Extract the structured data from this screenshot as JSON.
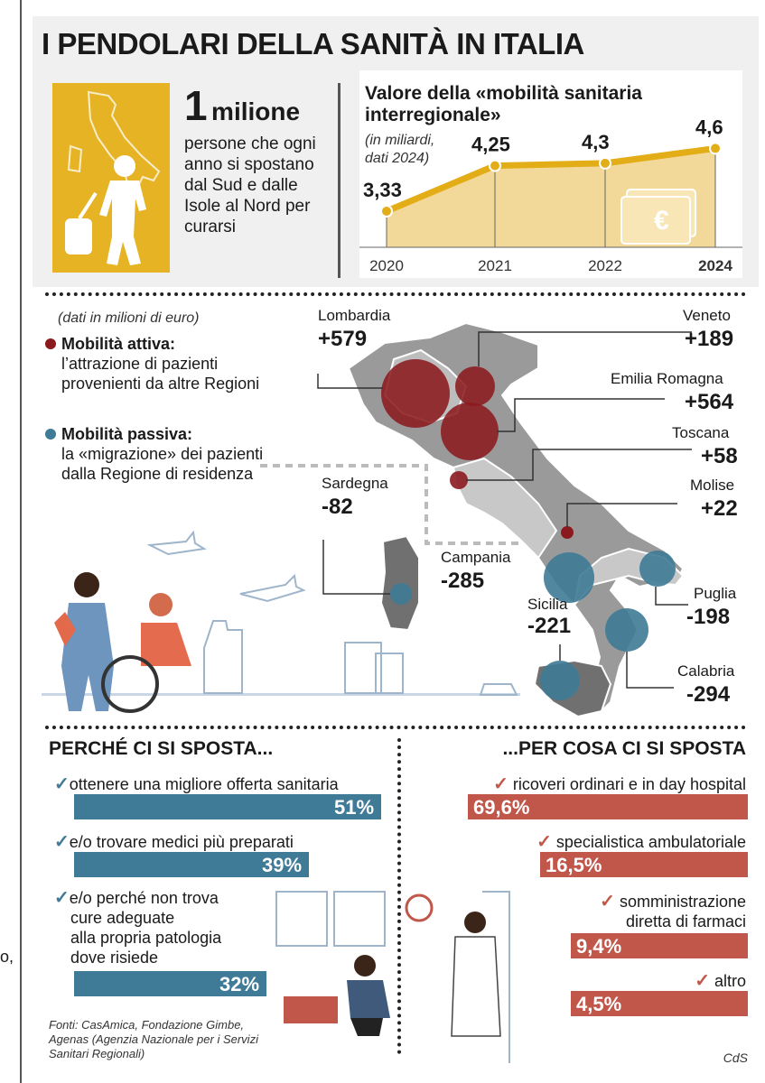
{
  "title": "I PENDOLARI DELLA SANITÀ IN ITALIA",
  "hero": {
    "number": "1",
    "unit": "milione",
    "text": "persone che ogni anno si spostano dal Sud e dalle Isole al Nord per curarsi"
  },
  "chart_data": {
    "type": "area",
    "title": "Valore della «mobilità sanitaria interregionale»",
    "subtitle_line1": "(in miliardi,",
    "subtitle_line2": "dati 2024)",
    "x": [
      "2020",
      "2021",
      "2022",
      "2024"
    ],
    "values": [
      3.33,
      4.25,
      4.3,
      4.6
    ],
    "labels": [
      "3,33",
      "4,25",
      "4,3",
      "4,6"
    ],
    "ylim": [
      2.6,
      4.9
    ],
    "colors": {
      "line": "#e3ad18",
      "fill": "#f3d999"
    }
  },
  "map": {
    "note": "(dati in milioni di euro)",
    "active": {
      "title": "Mobilità attiva:",
      "text": "l’attrazione di pazienti provenienti da altre Regioni",
      "color": "#8b1a1f"
    },
    "passive": {
      "title": "Mobilità passiva:",
      "text": "la «migrazione» dei pazienti dalla Regione di residenza",
      "color": "#3f7a96"
    },
    "regions": [
      {
        "name": "Lombardia",
        "value": "+579"
      },
      {
        "name": "Veneto",
        "value": "+189"
      },
      {
        "name": "Emilia Romagna",
        "value": "+564"
      },
      {
        "name": "Toscana",
        "value": "+58"
      },
      {
        "name": "Molise",
        "value": "+22"
      },
      {
        "name": "Sardegna",
        "value": "-82"
      },
      {
        "name": "Campania",
        "value": "-285"
      },
      {
        "name": "Puglia",
        "value": "-198"
      },
      {
        "name": "Sicilia",
        "value": "-221"
      },
      {
        "name": "Calabria",
        "value": "-294"
      }
    ]
  },
  "why": {
    "title": "PERCHÉ CI SI SPOSTA...",
    "items": [
      {
        "label": "ottenere una migliore offerta sanitaria",
        "value": 51,
        "display": "51"
      },
      {
        "label": "e/o trovare medici più preparati",
        "value": 39,
        "display": "39"
      },
      {
        "label_lines": [
          "e/o perché non trova",
          "cure adeguate",
          "alla propria patologia",
          "dove risiede"
        ],
        "value": 32,
        "display": "32"
      }
    ],
    "color": "#3f7a96"
  },
  "what": {
    "title": "...PER COSA CI SI SPOSTA",
    "items": [
      {
        "label": "ricoveri ordinari e in day hospital",
        "value": 69.6,
        "display": "69,6"
      },
      {
        "label": "specialistica ambulatoriale",
        "value": 16.5,
        "display": "16,5"
      },
      {
        "label_lines": [
          "somministrazione",
          "diretta di farmaci"
        ],
        "value": 9.4,
        "display": "9,4"
      },
      {
        "label": "altro",
        "value": 4.5,
        "display": "4,5"
      }
    ],
    "color": "#c0574a"
  },
  "percent_sign": "%",
  "sources": "Fonti: CasAmica, Fondazione Gimbe, Agenas (Agenzia Nazionale per i Servizi Sanitari Regionali)",
  "credit": "CdS",
  "stray_text": "o,"
}
